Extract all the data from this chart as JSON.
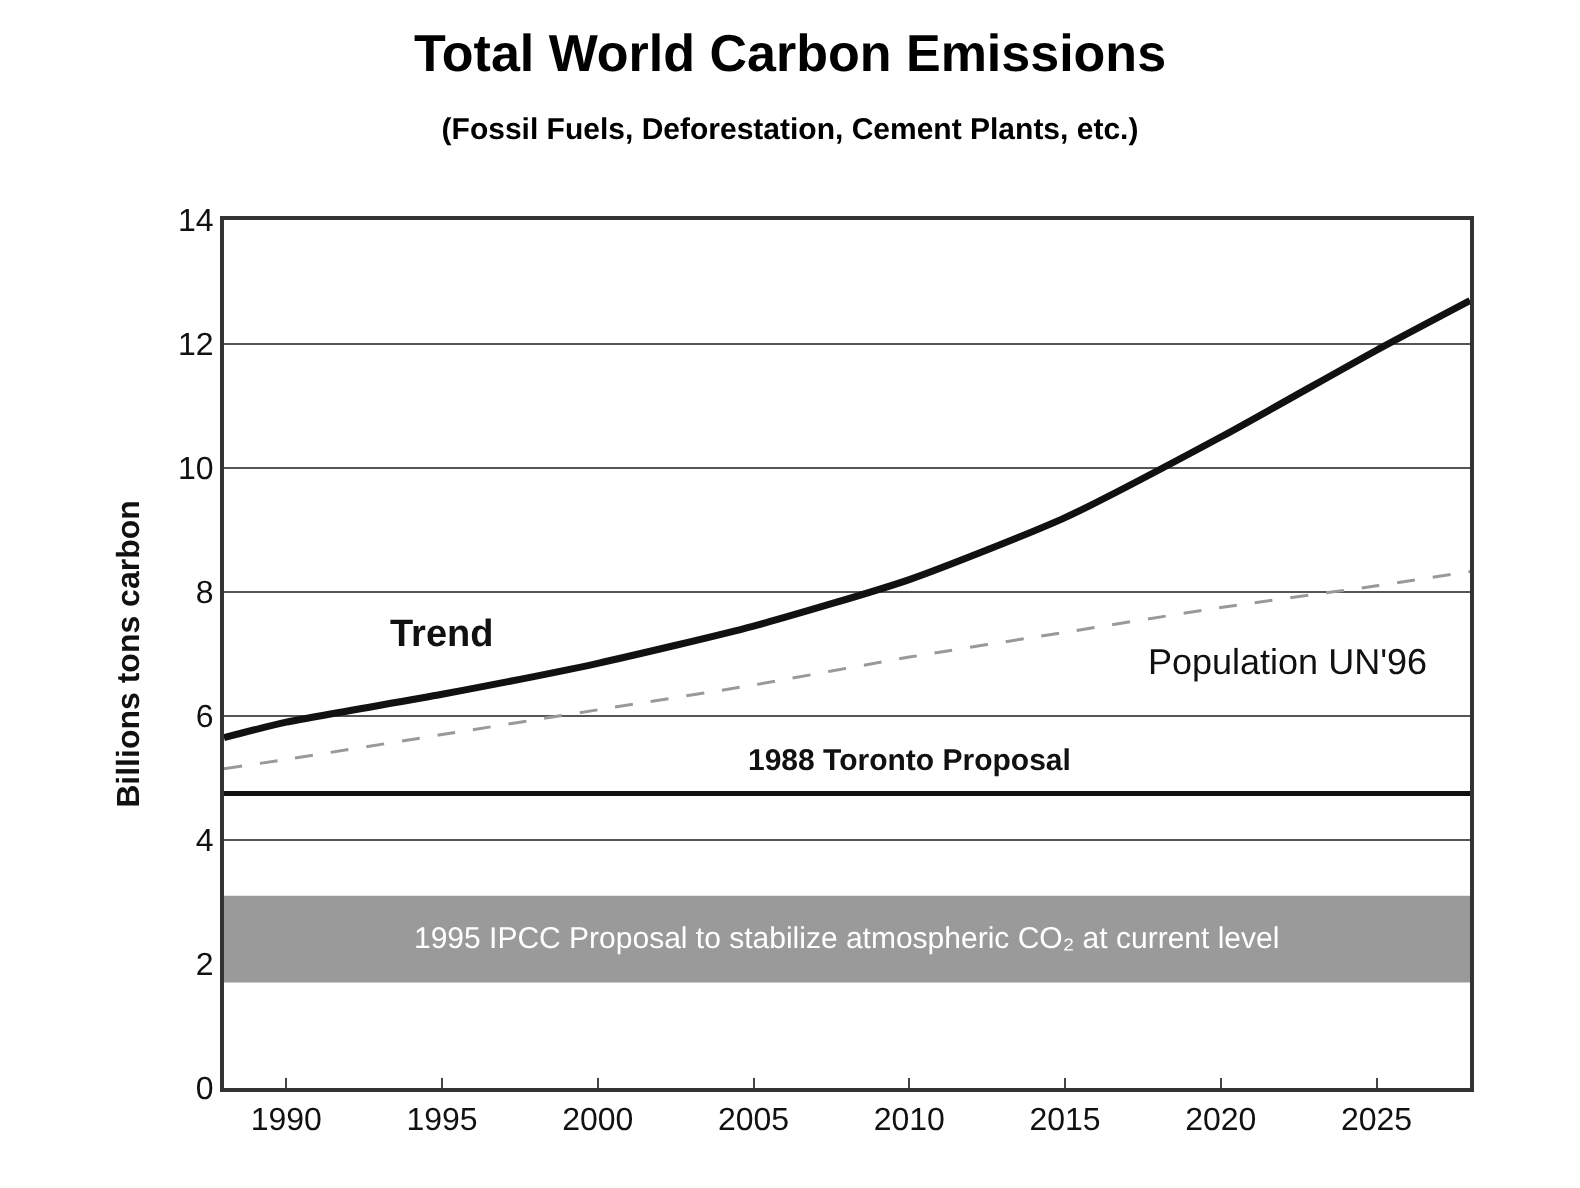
{
  "chart_data": {
    "type": "line",
    "title": "Total World Carbon Emissions",
    "subtitle": "(Fossil Fuels, Deforestation, Cement Plants, etc.)",
    "ylabel": "Billions tons carbon",
    "x": [
      1988,
      1990,
      1995,
      2000,
      2005,
      2010,
      2015,
      2020,
      2025,
      2028
    ],
    "series": [
      {
        "name": "Trend",
        "color": "#111111",
        "values": [
          5.65,
          5.9,
          6.35,
          6.85,
          7.45,
          8.2,
          9.2,
          10.5,
          11.9,
          12.7
        ]
      },
      {
        "name": "Population UN'96",
        "color": "#999999",
        "line_style": "dashed",
        "values": [
          5.15,
          5.3,
          5.7,
          6.1,
          6.5,
          6.95,
          7.35,
          7.75,
          8.1,
          8.33
        ]
      }
    ],
    "ref_lines": [
      {
        "axis": "y",
        "value": 4.75,
        "label": "1988 Toronto Proposal",
        "color": "#111111"
      }
    ],
    "bands": [
      {
        "axis": "y",
        "from": 1.7,
        "to": 3.1,
        "label": "1995 IPCC Proposal to stabilize atmospheric CO₂ at current level",
        "color": "#9a9a9a"
      }
    ],
    "xlim": [
      1988,
      2028
    ],
    "xticks": [
      1990,
      1995,
      2000,
      2005,
      2010,
      2015,
      2020,
      2025
    ],
    "ylim": [
      0,
      14
    ],
    "yticks": [
      0,
      2,
      4,
      6,
      8,
      10,
      12,
      14
    ],
    "grid": "y",
    "legend": false,
    "marker": "none"
  }
}
